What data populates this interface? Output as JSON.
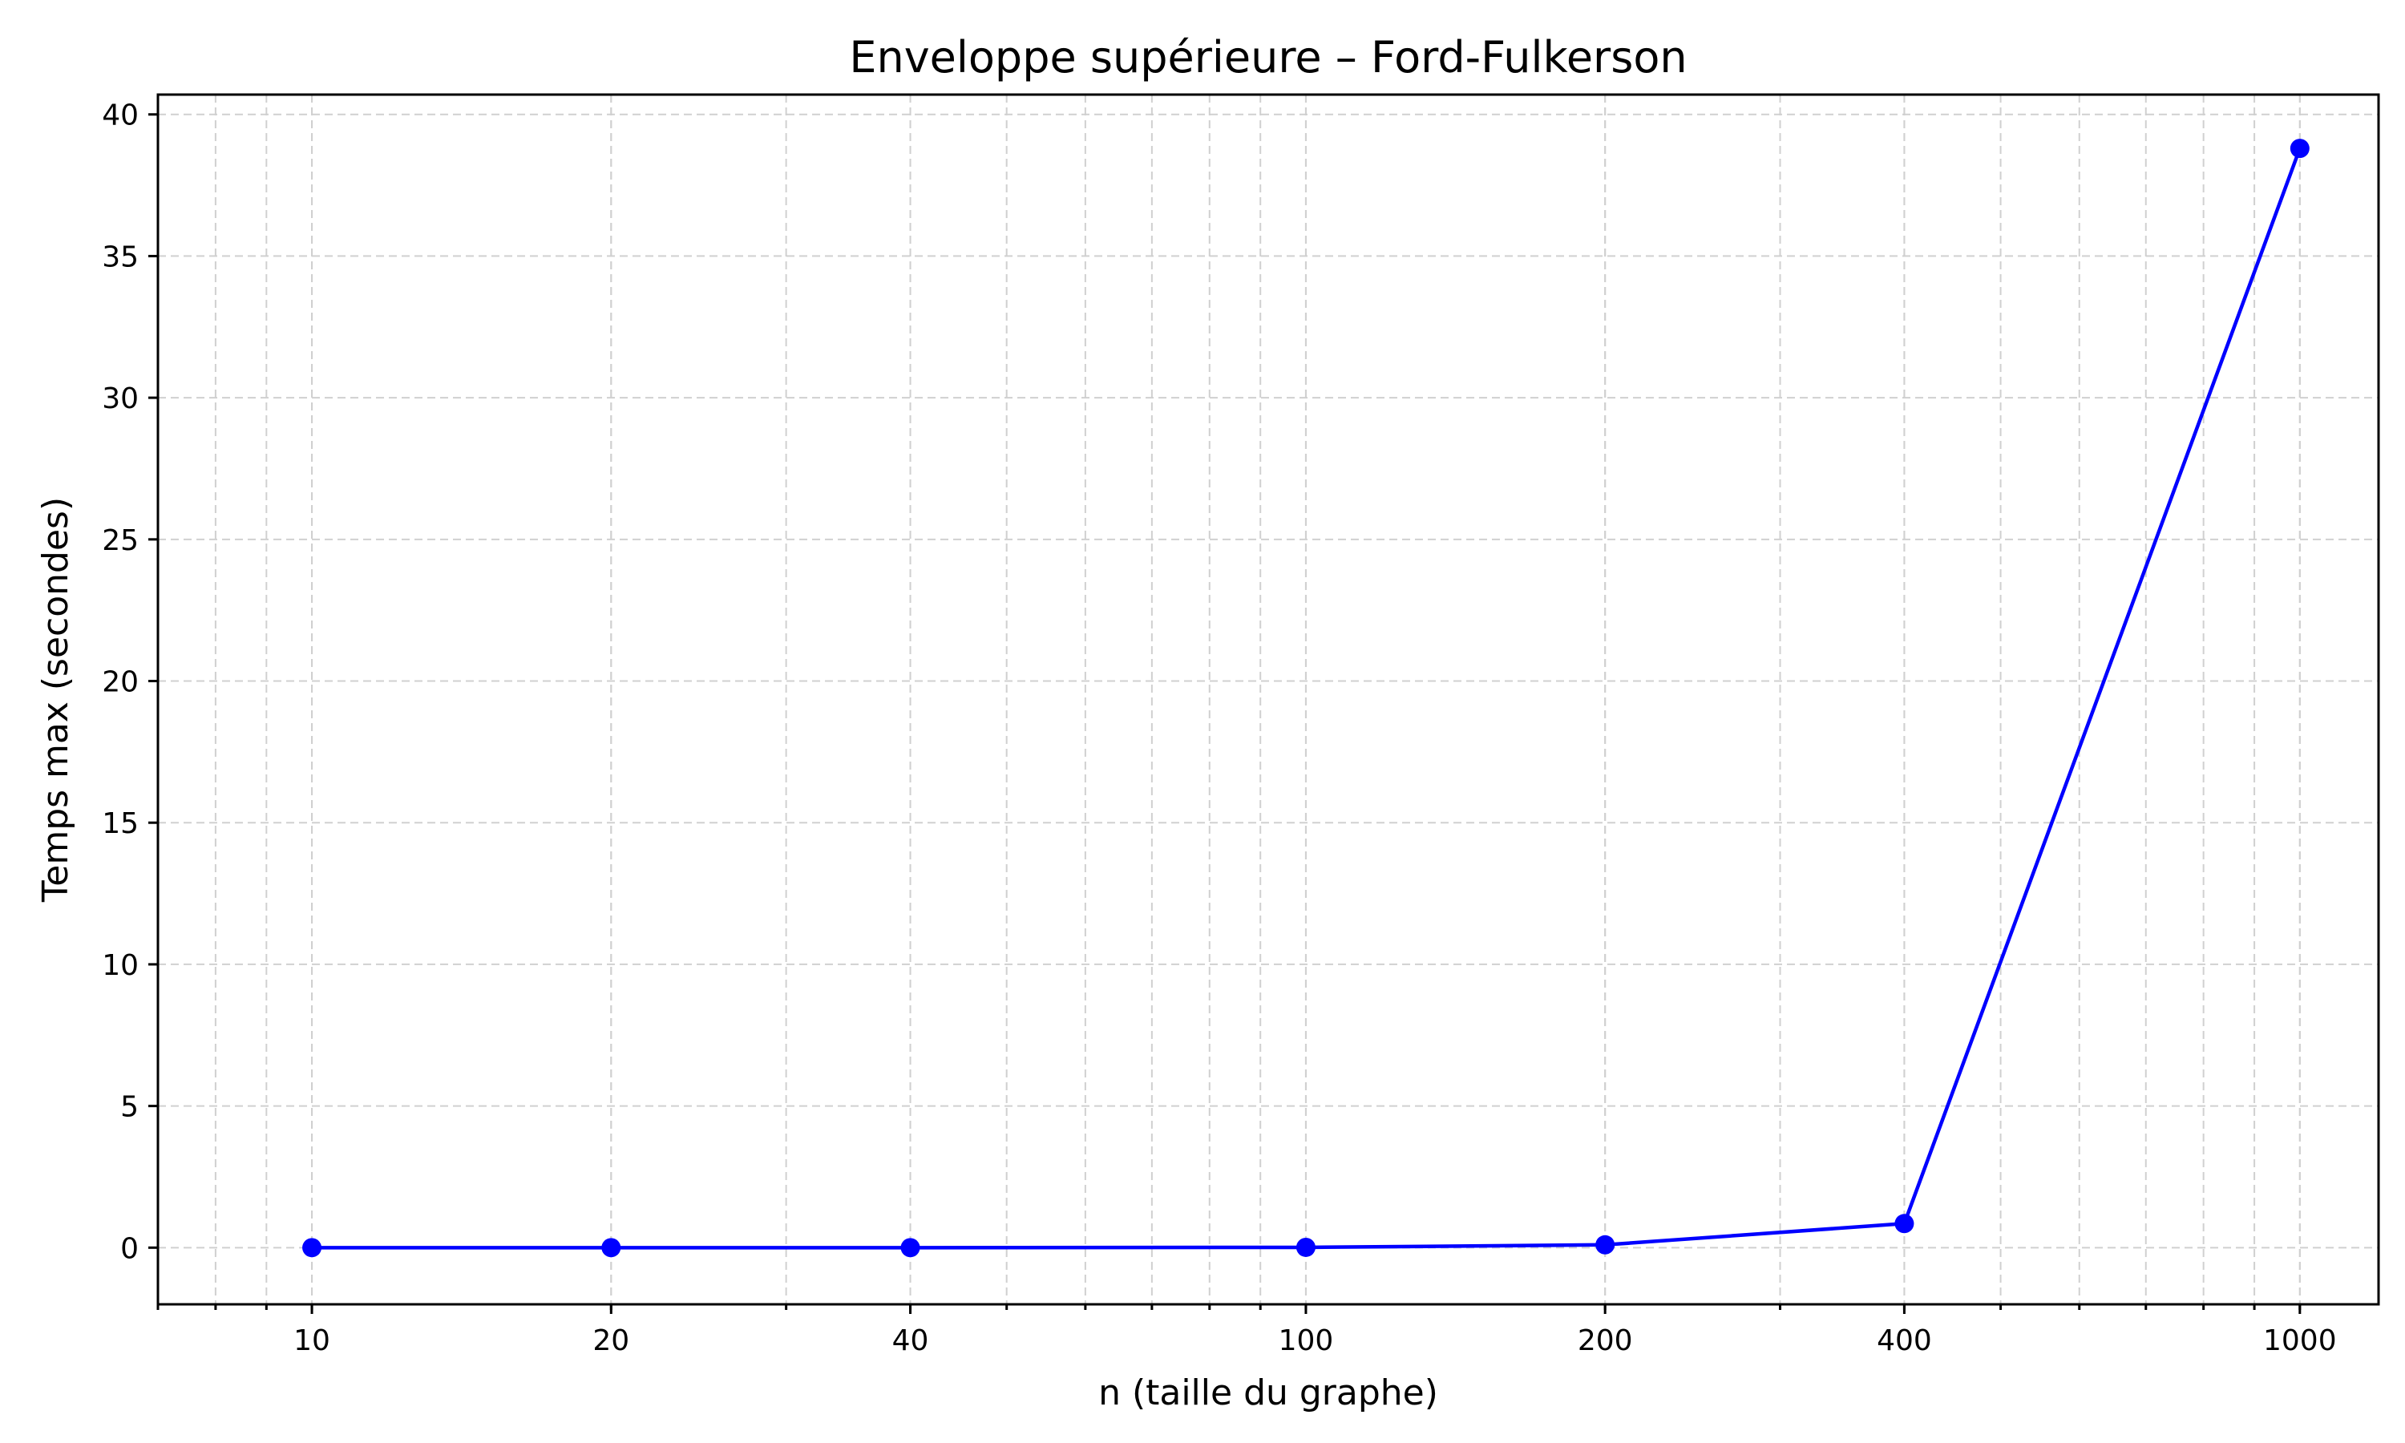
{
  "chart_data": {
    "type": "line",
    "title": "Enveloppe supérieure – Ford-Fulkerson",
    "xlabel": "n (taille du graphe)",
    "ylabel": "Temps max (secondes)",
    "x_scale": "log",
    "xlim": [
      7,
      1200
    ],
    "ylim": [
      -2,
      40.7
    ],
    "grid": true,
    "x_ticks": [
      10,
      20,
      40,
      100,
      200,
      400,
      1000
    ],
    "x_tick_labels": [
      "10",
      "20",
      "40",
      "100",
      "200",
      "400",
      "1000"
    ],
    "y_ticks": [
      0,
      5,
      10,
      15,
      20,
      25,
      30,
      35,
      40
    ],
    "y_tick_labels": [
      "0",
      "5",
      "10",
      "15",
      "20",
      "25",
      "30",
      "35",
      "40"
    ],
    "series": [
      {
        "color": "#0000ff",
        "marker": "circle",
        "x": [
          10,
          20,
          40,
          100,
          200,
          400,
          1000
        ],
        "y": [
          0.0,
          0.0,
          0.0,
          0.01,
          0.1,
          0.85,
          38.8
        ]
      }
    ]
  }
}
